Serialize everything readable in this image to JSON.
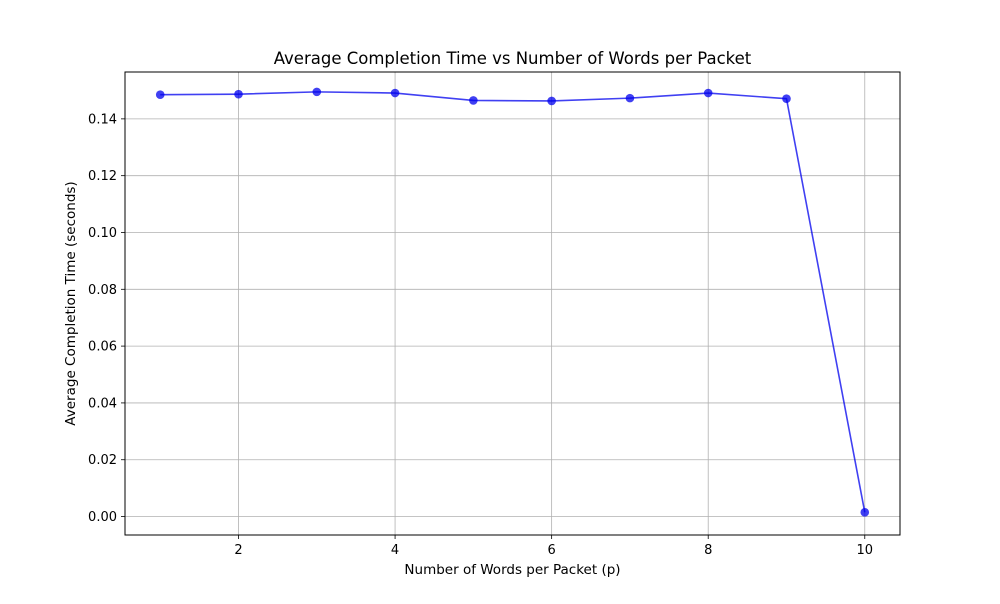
{
  "chart_data": {
    "type": "line",
    "title": "Average Completion Time vs Number of Words per Packet",
    "xlabel": "Number of Words per Packet (p)",
    "ylabel": "Average Completion Time (seconds)",
    "xlim": [
      0.55,
      10.45
    ],
    "ylim": [
      -0.0065,
      0.1565
    ],
    "x_ticks": [
      2,
      4,
      6,
      8,
      10
    ],
    "x_tick_labels": [
      "2",
      "4",
      "6",
      "8",
      "10"
    ],
    "y_ticks": [
      0.0,
      0.02,
      0.04,
      0.06,
      0.08,
      0.1,
      0.12,
      0.14
    ],
    "y_tick_labels": [
      "0.00",
      "0.02",
      "0.04",
      "0.06",
      "0.08",
      "0.10",
      "0.12",
      "0.14"
    ],
    "grid": true,
    "legend": "none",
    "series": [
      {
        "color": "#0000ee",
        "marker": "circle",
        "x": [
          1,
          2,
          3,
          4,
          5,
          6,
          7,
          8,
          9,
          10
        ],
        "y": [
          0.1485,
          0.1487,
          0.1495,
          0.1491,
          0.1465,
          0.1463,
          0.1473,
          0.1491,
          0.1471,
          0.0015
        ]
      }
    ]
  }
}
